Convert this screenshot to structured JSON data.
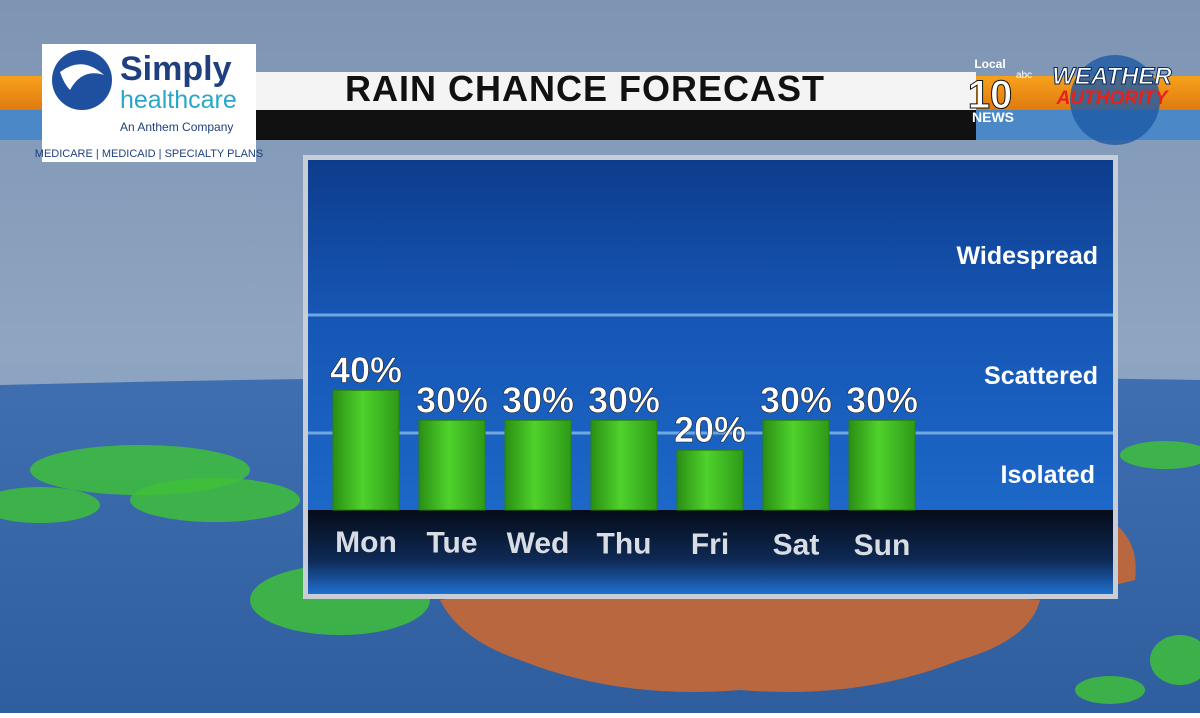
{
  "chart_data": {
    "type": "bar",
    "title": "RAIN CHANCE FORECAST",
    "categories": [
      "Mon",
      "Tue",
      "Wed",
      "Thu",
      "Fri",
      "Sat",
      "Sun"
    ],
    "values": [
      40,
      30,
      30,
      30,
      20,
      30,
      30
    ],
    "value_labels": [
      "40%",
      "30%",
      "30%",
      "30%",
      "20%",
      "30%",
      "30%"
    ],
    "color": "#3cb820",
    "ylim": [
      0,
      117
    ],
    "annotations": [
      "Widespread",
      "Scattered",
      "Isolated"
    ]
  },
  "sponsor": {
    "name_1": "Simply",
    "name_2": "healthcare",
    "tagline": "An Anthem Company",
    "plans": "MEDICARE | MEDICAID | SPECIALTY PLANS"
  },
  "station": {
    "local": "Local",
    "number": "10",
    "network": "abc",
    "news": "NEWS",
    "brand_1": "WEATHER",
    "brand_2": "AUTHORITY"
  }
}
